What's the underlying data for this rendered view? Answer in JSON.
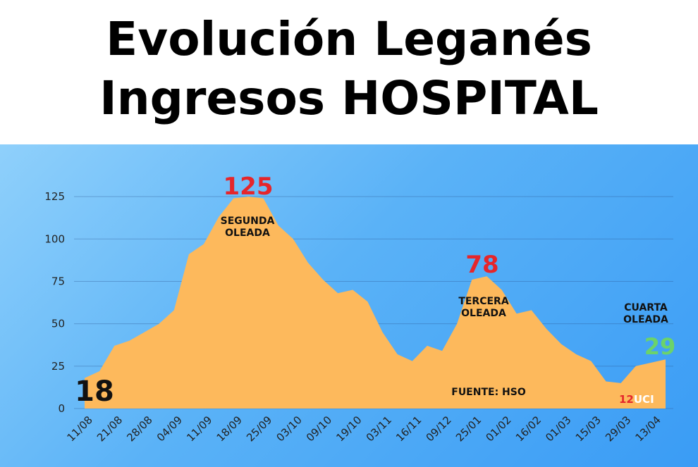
{
  "title": {
    "line1": "Evolución Leganés",
    "line2": "Ingresos HOSPITAL"
  },
  "colors": {
    "area": "#fdb95c",
    "peak_label": "#e5262b",
    "start_label": "#111111",
    "end_label": "#6bd36b"
  },
  "chart_data": {
    "type": "area",
    "title": "Evolución Leganés Ingresos HOSPITAL",
    "xlabel": "",
    "ylabel": "",
    "ylim": [
      0,
      135
    ],
    "yticks": [
      0,
      25,
      50,
      75,
      100,
      125
    ],
    "grid": true,
    "x_tick_labels": [
      "11/08",
      "21/08",
      "28/08",
      "04/09",
      "11/09",
      "18/09",
      "25/09",
      "03/10",
      "09/10",
      "19/10",
      "03/11",
      "16/11",
      "09/12",
      "25/01",
      "01/02",
      "16/02",
      "01/03",
      "15/03",
      "29/03",
      "13/04"
    ],
    "values": [
      18,
      22,
      37,
      40,
      45,
      50,
      58,
      91,
      97,
      113,
      124,
      125,
      124,
      108,
      100,
      86,
      76,
      68,
      70,
      63,
      45,
      32,
      28,
      37,
      34,
      50,
      76,
      78,
      70,
      56,
      58,
      47,
      38,
      32,
      28,
      16,
      15,
      25,
      27,
      29
    ],
    "annotations": {
      "start_value": "18",
      "peak_value": "125",
      "third_wave_value": "78",
      "end_value": "29",
      "second_wave_l1": "SEGUNDA",
      "second_wave_l2": "OLEADA",
      "third_wave_l1": "TERCERA",
      "third_wave_l2": "OLEADA",
      "fourth_wave_l1": "CUARTA",
      "fourth_wave_l2": "OLEADA",
      "source": "FUENTE: HSO",
      "brand_num": "12",
      "brand_text": "UCI"
    }
  }
}
